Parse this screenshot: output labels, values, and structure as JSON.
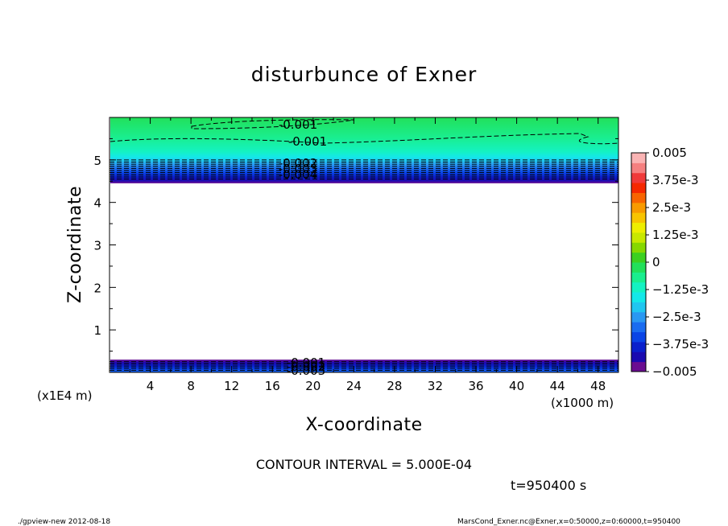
{
  "chart_data": {
    "type": "contour",
    "title": "disturbunce of Exner",
    "xlabel": "X-coordinate",
    "ylabel": "Z-coordinate",
    "x_unit_label": "(x1000 m)",
    "y_unit_label": "(x1E4 m)",
    "xlim": [
      0,
      50
    ],
    "ylim": [
      0,
      6
    ],
    "x_ticks": [
      4,
      8,
      12,
      16,
      20,
      24,
      28,
      32,
      36,
      40,
      44,
      48
    ],
    "y_ticks": [
      1,
      2,
      3,
      4,
      5
    ],
    "contour_interval": "CONTOUR INTERVAL = 5.000E-04",
    "time_label": "t=950400 s",
    "colorbar": {
      "levels": [
        -0.005,
        -0.0045,
        -0.004,
        -0.0035,
        -0.003,
        -0.0025,
        -0.002,
        -0.0015,
        -0.001,
        -0.0005,
        0,
        0.0005,
        0.001,
        0.0015,
        0.002,
        0.0025,
        0.003,
        0.0035,
        0.004,
        0.0045,
        0.005
      ],
      "colors": [
        "#6a0d91",
        "#1a0ab0",
        "#0a20cc",
        "#0a44e6",
        "#1a6cf0",
        "#2a98f2",
        "#20c6f0",
        "#14e8e8",
        "#14f2c2",
        "#1aee8e",
        "#22e05a",
        "#3cd020",
        "#86d800",
        "#c8e800",
        "#eeee00",
        "#f8c400",
        "#f89a00",
        "#f86400",
        "#f52800",
        "#f03a3a",
        "#f58080",
        "#fab4b4"
      ],
      "tick_labels": [
        "0.005",
        "3.75e-3",
        "2.5e-3",
        "1.25e-3",
        "0",
        "−1.25e-3",
        "−2.5e-3",
        "−3.75e-3",
        "−0.005"
      ]
    },
    "top_band": {
      "z_range": [
        4.45,
        6.0
      ],
      "fill_colors": [
        "#6a0d91",
        "#1a0ab0",
        "#0a20cc",
        "#0a44e6",
        "#1a6cf0",
        "#2a98f2",
        "#20c6f0",
        "#14e8e8",
        "#14f2c2",
        "#1aee8e",
        "#22e05a"
      ],
      "contour_labels": [
        "-0.001",
        "-0.001",
        "-0.002",
        "-0.003",
        "-0.004"
      ]
    },
    "bottom_band": {
      "z_range": [
        0.0,
        0.3
      ],
      "contour_labels": [
        "-0.001",
        "-0.002",
        "-0.003"
      ]
    },
    "footer_left": "./gpview-new   2012-08-18",
    "footer_right": "MarsCond_Exner.nc@Exner,x=0:50000,z=0:60000,t=950400"
  }
}
